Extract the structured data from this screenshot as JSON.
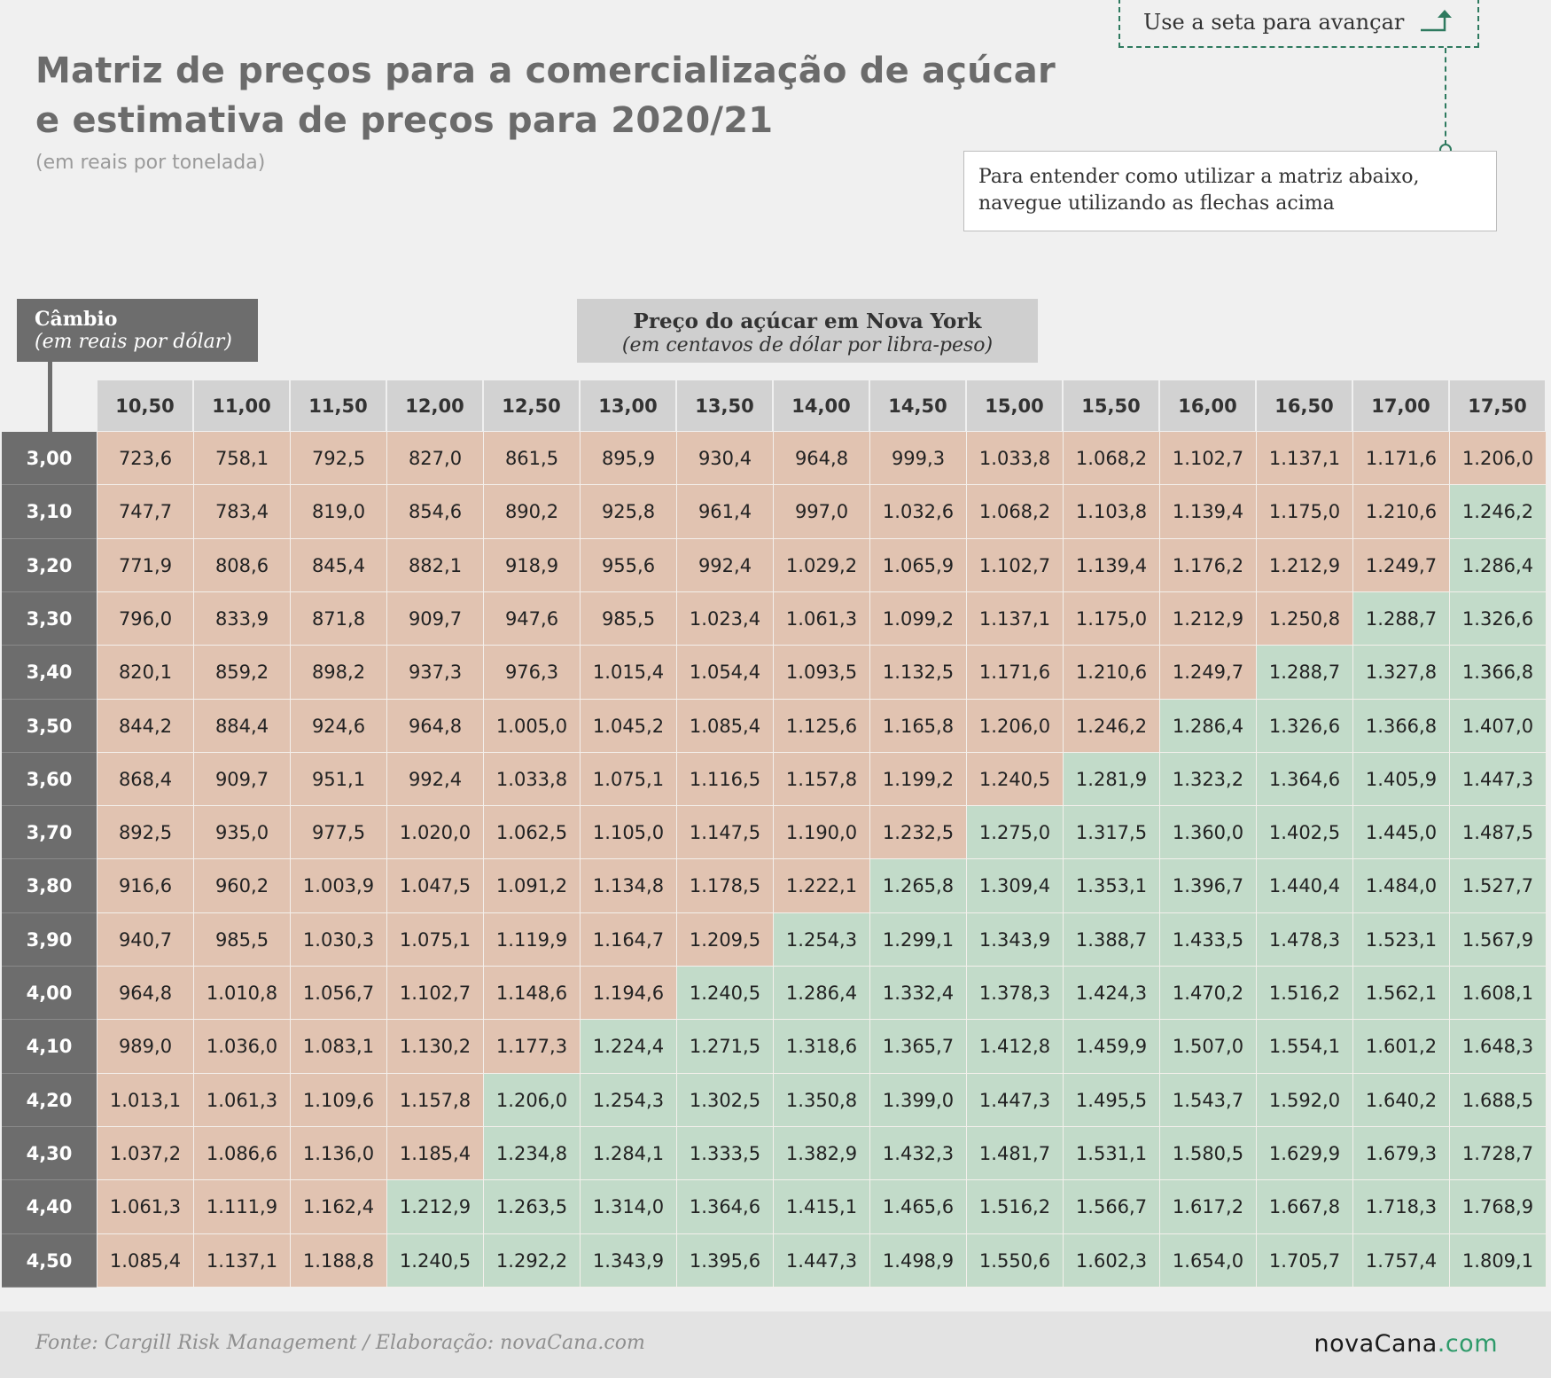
{
  "header": {
    "title_line1": "Matriz de preços para a comercialização de açúcar",
    "title_line2": "e estimativa de preços para 2020/21",
    "subtitle": "(em reais por tonelada)"
  },
  "nav": {
    "label": "Use a seta para avançar",
    "info_line1": "Para entender como utilizar a matriz abaixo,",
    "info_line2": "navegue utilizando as flechas acima"
  },
  "axis_labels": {
    "row_title": "Câmbio",
    "row_subtitle": "(em reais por dólar)",
    "col_title": "Preço do açúcar em Nova York",
    "col_subtitle": "(em centavos de dólar por libra-peso)"
  },
  "footer": {
    "source": "Fonte: Cargill Risk Management / Elaboração: novaCana.com",
    "logo_main": "novaCana",
    "logo_suffix": ".com"
  },
  "colors": {
    "below": "#e1c3b1",
    "above": "#c2dbc9",
    "row_header": "#6d6d6d",
    "col_header": "#d2d2d2"
  },
  "chart_data": {
    "type": "table",
    "title": "Matriz de preços para a comercialização de açúcar e estimativa de preços para 2020/21",
    "subtitle": "(em reais por tonelada)",
    "col_headers": [
      "10,50",
      "11,00",
      "11,50",
      "12,00",
      "12,50",
      "13,00",
      "13,50",
      "14,00",
      "14,50",
      "15,00",
      "15,50",
      "16,00",
      "16,50",
      "17,00",
      "17,50"
    ],
    "row_headers": [
      "3,00",
      "3,10",
      "3,20",
      "3,30",
      "3,40",
      "3,50",
      "3,60",
      "3,70",
      "3,80",
      "3,90",
      "4,00",
      "4,10",
      "4,20",
      "4,30",
      "4,40",
      "4,50"
    ],
    "green_from_col": [
      15,
      14,
      14,
      13,
      12,
      11,
      10,
      9,
      8,
      7,
      6,
      5,
      4,
      4,
      3,
      3
    ],
    "values": [
      [
        "723,6",
        "758,1",
        "792,5",
        "827,0",
        "861,5",
        "895,9",
        "930,4",
        "964,8",
        "999,3",
        "1.033,8",
        "1.068,2",
        "1.102,7",
        "1.137,1",
        "1.171,6",
        "1.206,0"
      ],
      [
        "747,7",
        "783,4",
        "819,0",
        "854,6",
        "890,2",
        "925,8",
        "961,4",
        "997,0",
        "1.032,6",
        "1.068,2",
        "1.103,8",
        "1.139,4",
        "1.175,0",
        "1.210,6",
        "1.246,2"
      ],
      [
        "771,9",
        "808,6",
        "845,4",
        "882,1",
        "918,9",
        "955,6",
        "992,4",
        "1.029,2",
        "1.065,9",
        "1.102,7",
        "1.139,4",
        "1.176,2",
        "1.212,9",
        "1.249,7",
        "1.286,4"
      ],
      [
        "796,0",
        "833,9",
        "871,8",
        "909,7",
        "947,6",
        "985,5",
        "1.023,4",
        "1.061,3",
        "1.099,2",
        "1.137,1",
        "1.175,0",
        "1.212,9",
        "1.250,8",
        "1.288,7",
        "1.326,6"
      ],
      [
        "820,1",
        "859,2",
        "898,2",
        "937,3",
        "976,3",
        "1.015,4",
        "1.054,4",
        "1.093,5",
        "1.132,5",
        "1.171,6",
        "1.210,6",
        "1.249,7",
        "1.288,7",
        "1.327,8",
        "1.366,8"
      ],
      [
        "844,2",
        "884,4",
        "924,6",
        "964,8",
        "1.005,0",
        "1.045,2",
        "1.085,4",
        "1.125,6",
        "1.165,8",
        "1.206,0",
        "1.246,2",
        "1.286,4",
        "1.326,6",
        "1.366,8",
        "1.407,0"
      ],
      [
        "868,4",
        "909,7",
        "951,1",
        "992,4",
        "1.033,8",
        "1.075,1",
        "1.116,5",
        "1.157,8",
        "1.199,2",
        "1.240,5",
        "1.281,9",
        "1.323,2",
        "1.364,6",
        "1.405,9",
        "1.447,3"
      ],
      [
        "892,5",
        "935,0",
        "977,5",
        "1.020,0",
        "1.062,5",
        "1.105,0",
        "1.147,5",
        "1.190,0",
        "1.232,5",
        "1.275,0",
        "1.317,5",
        "1.360,0",
        "1.402,5",
        "1.445,0",
        "1.487,5"
      ],
      [
        "916,6",
        "960,2",
        "1.003,9",
        "1.047,5",
        "1.091,2",
        "1.134,8",
        "1.178,5",
        "1.222,1",
        "1.265,8",
        "1.309,4",
        "1.353,1",
        "1.396,7",
        "1.440,4",
        "1.484,0",
        "1.527,7"
      ],
      [
        "940,7",
        "985,5",
        "1.030,3",
        "1.075,1",
        "1.119,9",
        "1.164,7",
        "1.209,5",
        "1.254,3",
        "1.299,1",
        "1.343,9",
        "1.388,7",
        "1.433,5",
        "1.478,3",
        "1.523,1",
        "1.567,9"
      ],
      [
        "964,8",
        "1.010,8",
        "1.056,7",
        "1.102,7",
        "1.148,6",
        "1.194,6",
        "1.240,5",
        "1.286,4",
        "1.332,4",
        "1.378,3",
        "1.424,3",
        "1.470,2",
        "1.516,2",
        "1.562,1",
        "1.608,1"
      ],
      [
        "989,0",
        "1.036,0",
        "1.083,1",
        "1.130,2",
        "1.177,3",
        "1.224,4",
        "1.271,5",
        "1.318,6",
        "1.365,7",
        "1.412,8",
        "1.459,9",
        "1.507,0",
        "1.554,1",
        "1.601,2",
        "1.648,3"
      ],
      [
        "1.013,1",
        "1.061,3",
        "1.109,6",
        "1.157,8",
        "1.206,0",
        "1.254,3",
        "1.302,5",
        "1.350,8",
        "1.399,0",
        "1.447,3",
        "1.495,5",
        "1.543,7",
        "1.592,0",
        "1.640,2",
        "1.688,5"
      ],
      [
        "1.037,2",
        "1.086,6",
        "1.136,0",
        "1.185,4",
        "1.234,8",
        "1.284,1",
        "1.333,5",
        "1.382,9",
        "1.432,3",
        "1.481,7",
        "1.531,1",
        "1.580,5",
        "1.629,9",
        "1.679,3",
        "1.728,7"
      ],
      [
        "1.061,3",
        "1.111,9",
        "1.162,4",
        "1.212,9",
        "1.263,5",
        "1.314,0",
        "1.364,6",
        "1.415,1",
        "1.465,6",
        "1.516,2",
        "1.566,7",
        "1.617,2",
        "1.667,8",
        "1.718,3",
        "1.768,9"
      ],
      [
        "1.085,4",
        "1.137,1",
        "1.188,8",
        "1.240,5",
        "1.292,2",
        "1.343,9",
        "1.395,6",
        "1.447,3",
        "1.498,9",
        "1.550,6",
        "1.602,3",
        "1.654,0",
        "1.705,7",
        "1.757,4",
        "1.809,1"
      ]
    ]
  }
}
